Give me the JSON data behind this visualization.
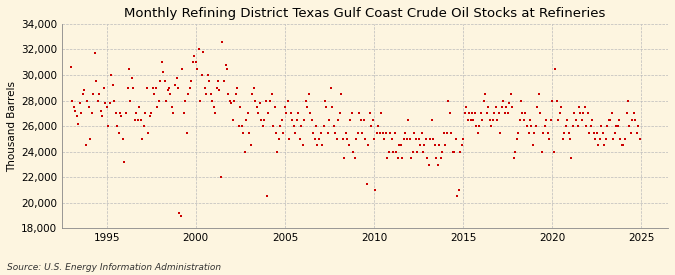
{
  "title": "Monthly Refining District Texas Gulf Coast Crude Oil Stocks at Refineries",
  "ylabel": "Thousand Barrels",
  "source": "Source: U.S. Energy Information Administration",
  "xlim": [
    1992.5,
    2026.5
  ],
  "ylim": [
    18000,
    34000
  ],
  "yticks": [
    18000,
    20000,
    22000,
    24000,
    26000,
    28000,
    30000,
    32000,
    34000
  ],
  "xticks": [
    1995,
    2000,
    2005,
    2010,
    2015,
    2020,
    2025
  ],
  "marker_color": "#CC0000",
  "background_color": "#FDF5E0",
  "plot_bg_color": "#FDF5E0",
  "grid_color": "#BBBBBB",
  "title_fontsize": 9.5,
  "label_fontsize": 7.5,
  "tick_fontsize": 7.5,
  "source_fontsize": 6.5,
  "data": [
    [
      1993.0,
      30600
    ],
    [
      1993.08,
      28000
    ],
    [
      1993.17,
      27500
    ],
    [
      1993.25,
      27200
    ],
    [
      1993.33,
      26800
    ],
    [
      1993.42,
      26200
    ],
    [
      1993.5,
      27800
    ],
    [
      1993.58,
      27000
    ],
    [
      1993.67,
      28500
    ],
    [
      1993.75,
      28800
    ],
    [
      1993.83,
      24500
    ],
    [
      1993.92,
      28000
    ],
    [
      1994.0,
      27500
    ],
    [
      1994.08,
      25000
    ],
    [
      1994.17,
      27000
    ],
    [
      1994.25,
      28500
    ],
    [
      1994.33,
      31700
    ],
    [
      1994.42,
      29500
    ],
    [
      1994.5,
      28000
    ],
    [
      1994.58,
      28500
    ],
    [
      1994.67,
      27200
    ],
    [
      1994.75,
      26800
    ],
    [
      1994.83,
      29000
    ],
    [
      1994.92,
      27800
    ],
    [
      1995.0,
      27500
    ],
    [
      1995.08,
      26000
    ],
    [
      1995.17,
      27800
    ],
    [
      1995.25,
      30000
    ],
    [
      1995.33,
      29200
    ],
    [
      1995.42,
      28000
    ],
    [
      1995.5,
      27000
    ],
    [
      1995.58,
      26000
    ],
    [
      1995.67,
      25500
    ],
    [
      1995.75,
      27000
    ],
    [
      1995.83,
      26800
    ],
    [
      1995.92,
      25000
    ],
    [
      1996.0,
      23200
    ],
    [
      1996.08,
      27000
    ],
    [
      1996.17,
      29000
    ],
    [
      1996.25,
      30500
    ],
    [
      1996.33,
      28000
    ],
    [
      1996.42,
      29800
    ],
    [
      1996.5,
      29000
    ],
    [
      1996.58,
      26500
    ],
    [
      1996.67,
      27000
    ],
    [
      1996.75,
      26500
    ],
    [
      1996.83,
      27500
    ],
    [
      1996.92,
      26500
    ],
    [
      1997.0,
      25000
    ],
    [
      1997.08,
      26000
    ],
    [
      1997.17,
      27000
    ],
    [
      1997.25,
      29000
    ],
    [
      1997.33,
      25500
    ],
    [
      1997.42,
      26800
    ],
    [
      1997.5,
      27000
    ],
    [
      1997.58,
      29000
    ],
    [
      1997.67,
      28500
    ],
    [
      1997.75,
      29000
    ],
    [
      1997.83,
      27500
    ],
    [
      1997.92,
      28000
    ],
    [
      1998.0,
      29500
    ],
    [
      1998.08,
      31000
    ],
    [
      1998.17,
      30200
    ],
    [
      1998.25,
      29500
    ],
    [
      1998.33,
      28000
    ],
    [
      1998.42,
      28800
    ],
    [
      1998.5,
      29000
    ],
    [
      1998.58,
      28500
    ],
    [
      1998.67,
      27500
    ],
    [
      1998.75,
      27000
    ],
    [
      1998.83,
      29200
    ],
    [
      1998.92,
      29800
    ],
    [
      1999.0,
      29000
    ],
    [
      1999.08,
      19200
    ],
    [
      1999.17,
      19000
    ],
    [
      1999.25,
      30500
    ],
    [
      1999.33,
      27000
    ],
    [
      1999.42,
      28000
    ],
    [
      1999.5,
      25500
    ],
    [
      1999.58,
      28500
    ],
    [
      1999.67,
      29000
    ],
    [
      1999.75,
      29500
    ],
    [
      1999.83,
      31000
    ],
    [
      1999.92,
      31500
    ],
    [
      2000.0,
      31000
    ],
    [
      2000.08,
      30500
    ],
    [
      2000.17,
      32000
    ],
    [
      2000.25,
      28000
    ],
    [
      2000.33,
      30000
    ],
    [
      2000.42,
      31800
    ],
    [
      2000.5,
      29000
    ],
    [
      2000.58,
      28500
    ],
    [
      2000.67,
      30000
    ],
    [
      2000.75,
      29500
    ],
    [
      2000.83,
      28500
    ],
    [
      2000.92,
      28000
    ],
    [
      2001.0,
      27500
    ],
    [
      2001.08,
      27000
    ],
    [
      2001.17,
      29000
    ],
    [
      2001.25,
      29500
    ],
    [
      2001.33,
      28800
    ],
    [
      2001.42,
      22000
    ],
    [
      2001.5,
      32600
    ],
    [
      2001.58,
      29500
    ],
    [
      2001.67,
      30800
    ],
    [
      2001.75,
      30500
    ],
    [
      2001.83,
      28500
    ],
    [
      2001.92,
      28000
    ],
    [
      2002.0,
      27800
    ],
    [
      2002.08,
      26500
    ],
    [
      2002.17,
      28000
    ],
    [
      2002.25,
      28500
    ],
    [
      2002.33,
      29000
    ],
    [
      2002.42,
      26000
    ],
    [
      2002.5,
      27500
    ],
    [
      2002.58,
      26000
    ],
    [
      2002.67,
      25500
    ],
    [
      2002.75,
      24000
    ],
    [
      2002.83,
      26500
    ],
    [
      2002.92,
      27000
    ],
    [
      2003.0,
      25500
    ],
    [
      2003.08,
      24500
    ],
    [
      2003.17,
      28500
    ],
    [
      2003.25,
      29000
    ],
    [
      2003.33,
      28000
    ],
    [
      2003.42,
      27500
    ],
    [
      2003.5,
      27000
    ],
    [
      2003.58,
      27800
    ],
    [
      2003.67,
      26500
    ],
    [
      2003.75,
      26000
    ],
    [
      2003.83,
      26500
    ],
    [
      2003.92,
      28000
    ],
    [
      2004.0,
      20500
    ],
    [
      2004.08,
      27000
    ],
    [
      2004.17,
      28000
    ],
    [
      2004.25,
      28500
    ],
    [
      2004.33,
      26000
    ],
    [
      2004.42,
      27500
    ],
    [
      2004.5,
      25500
    ],
    [
      2004.58,
      24000
    ],
    [
      2004.67,
      25000
    ],
    [
      2004.75,
      26000
    ],
    [
      2004.83,
      26500
    ],
    [
      2004.92,
      25500
    ],
    [
      2005.0,
      27500
    ],
    [
      2005.08,
      27000
    ],
    [
      2005.17,
      28000
    ],
    [
      2005.25,
      25000
    ],
    [
      2005.33,
      27000
    ],
    [
      2005.42,
      26500
    ],
    [
      2005.5,
      26000
    ],
    [
      2005.58,
      25500
    ],
    [
      2005.67,
      26500
    ],
    [
      2005.75,
      27000
    ],
    [
      2005.83,
      25000
    ],
    [
      2005.92,
      26000
    ],
    [
      2006.0,
      24500
    ],
    [
      2006.08,
      26500
    ],
    [
      2006.17,
      28000
    ],
    [
      2006.25,
      27500
    ],
    [
      2006.33,
      28500
    ],
    [
      2006.42,
      27000
    ],
    [
      2006.5,
      26500
    ],
    [
      2006.58,
      25500
    ],
    [
      2006.67,
      25000
    ],
    [
      2006.75,
      26000
    ],
    [
      2006.83,
      24500
    ],
    [
      2006.92,
      25000
    ],
    [
      2007.0,
      25500
    ],
    [
      2007.08,
      24500
    ],
    [
      2007.17,
      26000
    ],
    [
      2007.25,
      28000
    ],
    [
      2007.33,
      27500
    ],
    [
      2007.42,
      25500
    ],
    [
      2007.5,
      26500
    ],
    [
      2007.58,
      29000
    ],
    [
      2007.67,
      27500
    ],
    [
      2007.75,
      26000
    ],
    [
      2007.83,
      25500
    ],
    [
      2007.92,
      25000
    ],
    [
      2008.0,
      26500
    ],
    [
      2008.08,
      27000
    ],
    [
      2008.17,
      28500
    ],
    [
      2008.25,
      25000
    ],
    [
      2008.33,
      23500
    ],
    [
      2008.42,
      25500
    ],
    [
      2008.5,
      25000
    ],
    [
      2008.58,
      24500
    ],
    [
      2008.67,
      26500
    ],
    [
      2008.75,
      27000
    ],
    [
      2008.83,
      24000
    ],
    [
      2008.92,
      23500
    ],
    [
      2009.0,
      25000
    ],
    [
      2009.08,
      25500
    ],
    [
      2009.17,
      27000
    ],
    [
      2009.25,
      26500
    ],
    [
      2009.33,
      25500
    ],
    [
      2009.42,
      26500
    ],
    [
      2009.5,
      25000
    ],
    [
      2009.58,
      21500
    ],
    [
      2009.67,
      24500
    ],
    [
      2009.75,
      27000
    ],
    [
      2009.83,
      26000
    ],
    [
      2009.92,
      26500
    ],
    [
      2010.0,
      25000
    ],
    [
      2010.08,
      21000
    ],
    [
      2010.17,
      25500
    ],
    [
      2010.25,
      26000
    ],
    [
      2010.33,
      25500
    ],
    [
      2010.42,
      27000
    ],
    [
      2010.5,
      25500
    ],
    [
      2010.58,
      25000
    ],
    [
      2010.67,
      25500
    ],
    [
      2010.75,
      23500
    ],
    [
      2010.83,
      24000
    ],
    [
      2010.92,
      25500
    ],
    [
      2011.0,
      25000
    ],
    [
      2011.08,
      24000
    ],
    [
      2011.17,
      25500
    ],
    [
      2011.25,
      24000
    ],
    [
      2011.33,
      23500
    ],
    [
      2011.42,
      24500
    ],
    [
      2011.5,
      24500
    ],
    [
      2011.58,
      23500
    ],
    [
      2011.67,
      25000
    ],
    [
      2011.75,
      25500
    ],
    [
      2011.83,
      25000
    ],
    [
      2011.92,
      26500
    ],
    [
      2012.0,
      25000
    ],
    [
      2012.08,
      23500
    ],
    [
      2012.17,
      24000
    ],
    [
      2012.25,
      25500
    ],
    [
      2012.33,
      25000
    ],
    [
      2012.42,
      24000
    ],
    [
      2012.5,
      25000
    ],
    [
      2012.58,
      24500
    ],
    [
      2012.67,
      25500
    ],
    [
      2012.75,
      24000
    ],
    [
      2012.83,
      24500
    ],
    [
      2012.92,
      25000
    ],
    [
      2013.0,
      23500
    ],
    [
      2013.08,
      23000
    ],
    [
      2013.17,
      25000
    ],
    [
      2013.25,
      26500
    ],
    [
      2013.33,
      25000
    ],
    [
      2013.42,
      24500
    ],
    [
      2013.5,
      23500
    ],
    [
      2013.58,
      23000
    ],
    [
      2013.67,
      24500
    ],
    [
      2013.75,
      23500
    ],
    [
      2013.83,
      24000
    ],
    [
      2013.92,
      25500
    ],
    [
      2014.0,
      24500
    ],
    [
      2014.08,
      25500
    ],
    [
      2014.17,
      28000
    ],
    [
      2014.25,
      27000
    ],
    [
      2014.33,
      25500
    ],
    [
      2014.42,
      24000
    ],
    [
      2014.5,
      24000
    ],
    [
      2014.58,
      25000
    ],
    [
      2014.67,
      20500
    ],
    [
      2014.75,
      21000
    ],
    [
      2014.83,
      24000
    ],
    [
      2014.92,
      24500
    ],
    [
      2015.0,
      25000
    ],
    [
      2015.08,
      27000
    ],
    [
      2015.17,
      27500
    ],
    [
      2015.25,
      26500
    ],
    [
      2015.33,
      27000
    ],
    [
      2015.42,
      26500
    ],
    [
      2015.5,
      27000
    ],
    [
      2015.58,
      26500
    ],
    [
      2015.67,
      27000
    ],
    [
      2015.75,
      26000
    ],
    [
      2015.83,
      25500
    ],
    [
      2015.92,
      26000
    ],
    [
      2016.0,
      27000
    ],
    [
      2016.08,
      26500
    ],
    [
      2016.17,
      28000
    ],
    [
      2016.25,
      28500
    ],
    [
      2016.33,
      27000
    ],
    [
      2016.42,
      27500
    ],
    [
      2016.5,
      26500
    ],
    [
      2016.58,
      26000
    ],
    [
      2016.67,
      26500
    ],
    [
      2016.75,
      27000
    ],
    [
      2016.83,
      27500
    ],
    [
      2016.92,
      26500
    ],
    [
      2017.0,
      27000
    ],
    [
      2017.08,
      25500
    ],
    [
      2017.17,
      27500
    ],
    [
      2017.25,
      28000
    ],
    [
      2017.33,
      27000
    ],
    [
      2017.42,
      27500
    ],
    [
      2017.5,
      27000
    ],
    [
      2017.58,
      27800
    ],
    [
      2017.67,
      28500
    ],
    [
      2017.75,
      27500
    ],
    [
      2017.83,
      23500
    ],
    [
      2017.92,
      24000
    ],
    [
      2018.0,
      25000
    ],
    [
      2018.08,
      25500
    ],
    [
      2018.17,
      26500
    ],
    [
      2018.25,
      28000
    ],
    [
      2018.33,
      27000
    ],
    [
      2018.42,
      26500
    ],
    [
      2018.5,
      27000
    ],
    [
      2018.58,
      26000
    ],
    [
      2018.67,
      25500
    ],
    [
      2018.75,
      26500
    ],
    [
      2018.83,
      26000
    ],
    [
      2018.92,
      24500
    ],
    [
      2019.0,
      25500
    ],
    [
      2019.08,
      26000
    ],
    [
      2019.17,
      27500
    ],
    [
      2019.25,
      28500
    ],
    [
      2019.33,
      27000
    ],
    [
      2019.42,
      24000
    ],
    [
      2019.5,
      25500
    ],
    [
      2019.58,
      26000
    ],
    [
      2019.67,
      26500
    ],
    [
      2019.75,
      25500
    ],
    [
      2019.83,
      25000
    ],
    [
      2019.92,
      26500
    ],
    [
      2020.0,
      28000
    ],
    [
      2020.08,
      24000
    ],
    [
      2020.17,
      30500
    ],
    [
      2020.25,
      28000
    ],
    [
      2020.33,
      26500
    ],
    [
      2020.42,
      27000
    ],
    [
      2020.5,
      27500
    ],
    [
      2020.58,
      25000
    ],
    [
      2020.67,
      25500
    ],
    [
      2020.75,
      26000
    ],
    [
      2020.83,
      26500
    ],
    [
      2020.92,
      25500
    ],
    [
      2021.0,
      25000
    ],
    [
      2021.08,
      23500
    ],
    [
      2021.17,
      26000
    ],
    [
      2021.25,
      27000
    ],
    [
      2021.33,
      26500
    ],
    [
      2021.42,
      26000
    ],
    [
      2021.5,
      27500
    ],
    [
      2021.58,
      27000
    ],
    [
      2021.67,
      26500
    ],
    [
      2021.75,
      27000
    ],
    [
      2021.83,
      27500
    ],
    [
      2021.92,
      26000
    ],
    [
      2022.0,
      27000
    ],
    [
      2022.08,
      25500
    ],
    [
      2022.17,
      26000
    ],
    [
      2022.25,
      26500
    ],
    [
      2022.33,
      25500
    ],
    [
      2022.42,
      25000
    ],
    [
      2022.5,
      25500
    ],
    [
      2022.58,
      24500
    ],
    [
      2022.67,
      25000
    ],
    [
      2022.75,
      26000
    ],
    [
      2022.83,
      25500
    ],
    [
      2022.92,
      24500
    ],
    [
      2023.0,
      25000
    ],
    [
      2023.08,
      26000
    ],
    [
      2023.17,
      26500
    ],
    [
      2023.25,
      26500
    ],
    [
      2023.33,
      27000
    ],
    [
      2023.42,
      25000
    ],
    [
      2023.5,
      25500
    ],
    [
      2023.58,
      26000
    ],
    [
      2023.67,
      26000
    ],
    [
      2023.75,
      26500
    ],
    [
      2023.83,
      25000
    ],
    [
      2023.92,
      24500
    ],
    [
      2024.0,
      24500
    ],
    [
      2024.08,
      25000
    ],
    [
      2024.17,
      27000
    ],
    [
      2024.25,
      28000
    ],
    [
      2024.33,
      26000
    ],
    [
      2024.42,
      25500
    ],
    [
      2024.5,
      26500
    ],
    [
      2024.58,
      27000
    ],
    [
      2024.67,
      26500
    ],
    [
      2024.75,
      25500
    ],
    [
      2024.83,
      26000
    ],
    [
      2024.92,
      25000
    ]
  ]
}
